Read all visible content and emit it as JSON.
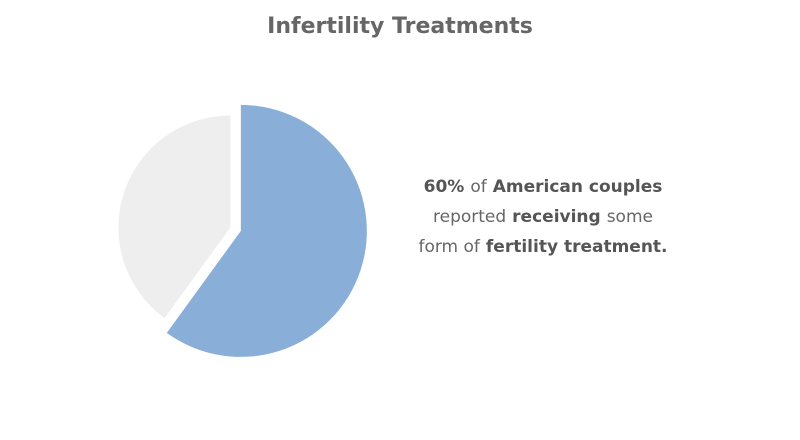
{
  "chart_data": {
    "type": "pie",
    "title": "Infertility Treatments",
    "categories": [
      null,
      null
    ],
    "values": [
      60,
      40
    ],
    "colors": [
      "#89afd9",
      "#eeeeee"
    ],
    "exploded": [
      true,
      false
    ],
    "annotation": [
      [
        {
          "text": "60%",
          "bold": true
        },
        {
          "text": "of"
        },
        {
          "text": "American couples",
          "bold": true
        }
      ],
      [
        {
          "text": "reported"
        },
        {
          "text": "receiving",
          "bold": true
        },
        {
          "text": "some"
        }
      ],
      [
        {
          "text": "form of"
        },
        {
          "text": "fertility treatment.",
          "bold": true
        }
      ]
    ]
  }
}
